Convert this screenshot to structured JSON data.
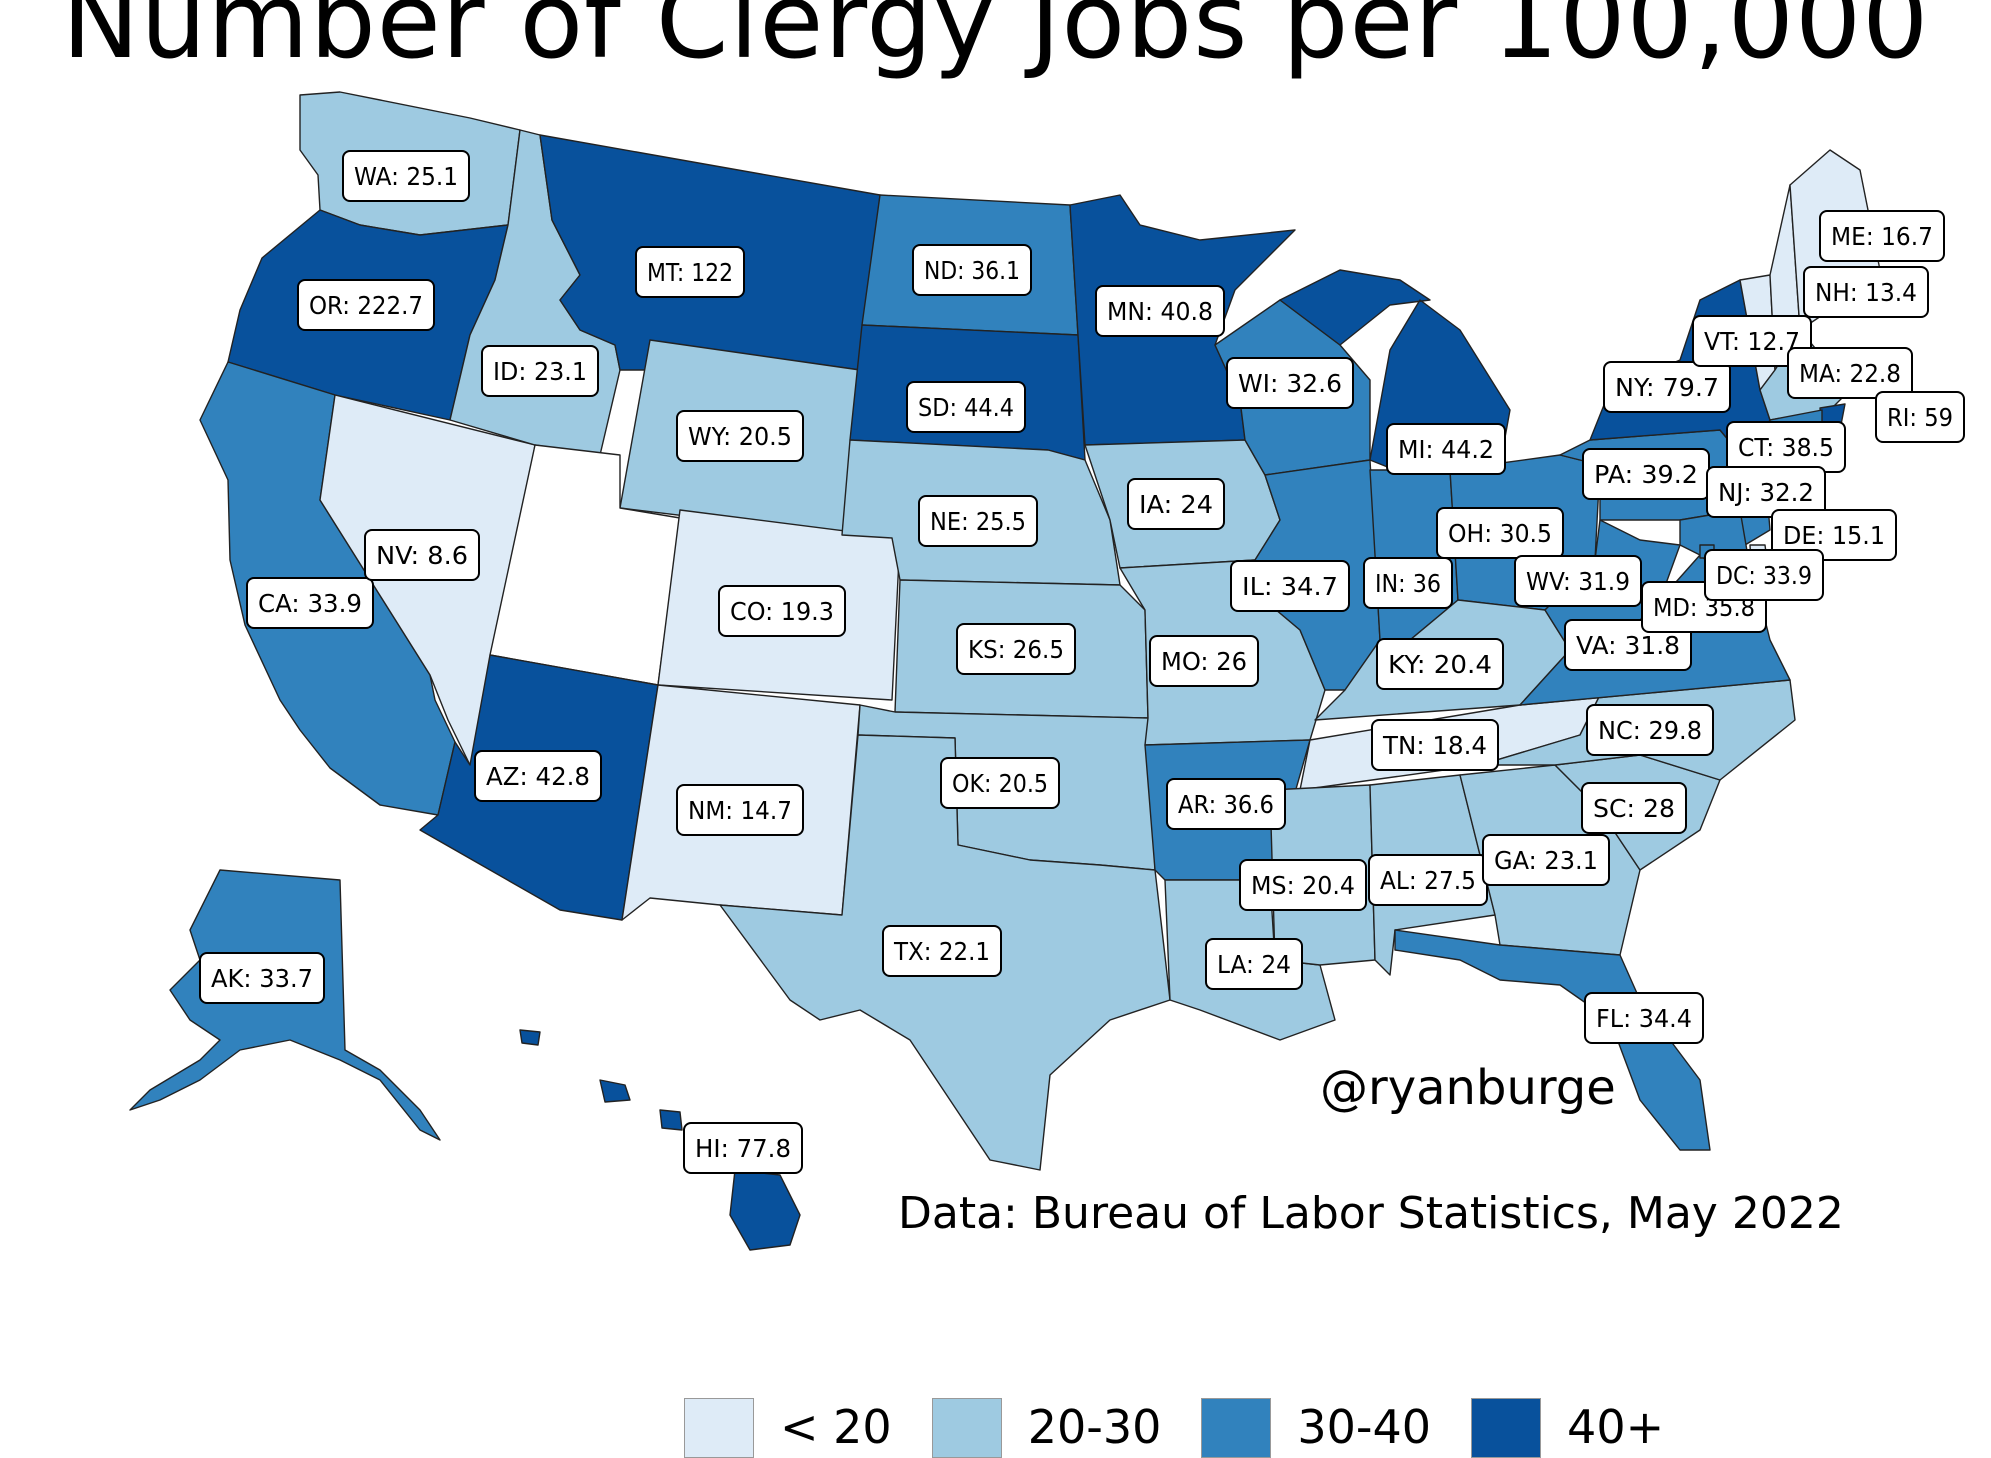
{
  "title": "Number of Clergy Jobs per 100,000",
  "credit": "@ryanburge",
  "source": "Data: Bureau of Labor Statistics, May 2022",
  "colors": {
    "lt20": "#deebf7",
    "20to30": "#9ecae1",
    "30to40": "#3182bd",
    "40plus": "#08519c",
    "nodata": "#ffffff"
  },
  "legend": [
    {
      "label": "< 20",
      "color": "#deebf7"
    },
    {
      "label": "20-30",
      "color": "#9ecae1"
    },
    {
      "label": "30-40",
      "color": "#3182bd"
    },
    {
      "label": "40+",
      "color": "#08519c"
    }
  ],
  "states": [
    {
      "abbr": "WA",
      "label": "WA: 25.1",
      "value": 25.1
    },
    {
      "abbr": "OR",
      "label": "OR: 222.7",
      "value": 222.7
    },
    {
      "abbr": "CA",
      "label": "CA: 33.9",
      "value": 33.9
    },
    {
      "abbr": "NV",
      "label": "NV: 8.6",
      "value": 8.6
    },
    {
      "abbr": "ID",
      "label": "ID: 23.1",
      "value": 23.1
    },
    {
      "abbr": "MT",
      "label": "MT: 122",
      "value": 122
    },
    {
      "abbr": "WY",
      "label": "WY: 20.5",
      "value": 20.5
    },
    {
      "abbr": "UT",
      "label": "",
      "value": null
    },
    {
      "abbr": "AZ",
      "label": "AZ: 42.8",
      "value": 42.8
    },
    {
      "abbr": "CO",
      "label": "CO: 19.3",
      "value": 19.3
    },
    {
      "abbr": "NM",
      "label": "NM: 14.7",
      "value": 14.7
    },
    {
      "abbr": "ND",
      "label": "ND: 36.1",
      "value": 36.1
    },
    {
      "abbr": "SD",
      "label": "SD: 44.4",
      "value": 44.4
    },
    {
      "abbr": "NE",
      "label": "NE: 25.5",
      "value": 25.5
    },
    {
      "abbr": "KS",
      "label": "KS: 26.5",
      "value": 26.5
    },
    {
      "abbr": "OK",
      "label": "OK: 20.5",
      "value": 20.5
    },
    {
      "abbr": "TX",
      "label": "TX: 22.1",
      "value": 22.1
    },
    {
      "abbr": "MN",
      "label": "MN: 40.8",
      "value": 40.8
    },
    {
      "abbr": "IA",
      "label": "IA: 24",
      "value": 24
    },
    {
      "abbr": "MO",
      "label": "MO: 26",
      "value": 26
    },
    {
      "abbr": "AR",
      "label": "AR: 36.6",
      "value": 36.6
    },
    {
      "abbr": "LA",
      "label": "LA: 24",
      "value": 24
    },
    {
      "abbr": "WI",
      "label": "WI: 32.6",
      "value": 32.6
    },
    {
      "abbr": "IL",
      "label": "IL: 34.7",
      "value": 34.7
    },
    {
      "abbr": "MI",
      "label": "MI: 44.2",
      "value": 44.2
    },
    {
      "abbr": "IN",
      "label": "IN: 36",
      "value": 36
    },
    {
      "abbr": "OH",
      "label": "OH: 30.5",
      "value": 30.5
    },
    {
      "abbr": "KY",
      "label": "KY: 20.4",
      "value": 20.4
    },
    {
      "abbr": "TN",
      "label": "TN: 18.4",
      "value": 18.4
    },
    {
      "abbr": "MS",
      "label": "MS: 20.4",
      "value": 20.4
    },
    {
      "abbr": "AL",
      "label": "AL: 27.5",
      "value": 27.5
    },
    {
      "abbr": "GA",
      "label": "GA: 23.1",
      "value": 23.1
    },
    {
      "abbr": "FL",
      "label": "FL: 34.4",
      "value": 34.4
    },
    {
      "abbr": "SC",
      "label": "SC: 28",
      "value": 28
    },
    {
      "abbr": "NC",
      "label": "NC: 29.8",
      "value": 29.8
    },
    {
      "abbr": "VA",
      "label": "VA: 31.8",
      "value": 31.8
    },
    {
      "abbr": "WV",
      "label": "WV: 31.9",
      "value": 31.9
    },
    {
      "abbr": "PA",
      "label": "PA: 39.2",
      "value": 39.2
    },
    {
      "abbr": "NY",
      "label": "NY: 79.7",
      "value": 79.7
    },
    {
      "abbr": "VT",
      "label": "VT: 12.7",
      "value": 12.7
    },
    {
      "abbr": "NH",
      "label": "NH: 13.4",
      "value": 13.4
    },
    {
      "abbr": "ME",
      "label": "ME: 16.7",
      "value": 16.7
    },
    {
      "abbr": "MA",
      "label": "MA: 22.8",
      "value": 22.8
    },
    {
      "abbr": "RI",
      "label": "RI: 59",
      "value": 59
    },
    {
      "abbr": "CT",
      "label": "CT: 38.5",
      "value": 38.5
    },
    {
      "abbr": "NJ",
      "label": "NJ: 32.2",
      "value": 32.2
    },
    {
      "abbr": "DE",
      "label": "DE: 15.1",
      "value": 15.1
    },
    {
      "abbr": "MD",
      "label": "MD: 35.8",
      "value": 35.8
    },
    {
      "abbr": "DC",
      "label": "DC: 33.9",
      "value": 33.9
    },
    {
      "abbr": "AK",
      "label": "AK: 33.7",
      "value": 33.7
    },
    {
      "abbr": "HI",
      "label": "HI: 77.8",
      "value": 77.8
    }
  ]
}
